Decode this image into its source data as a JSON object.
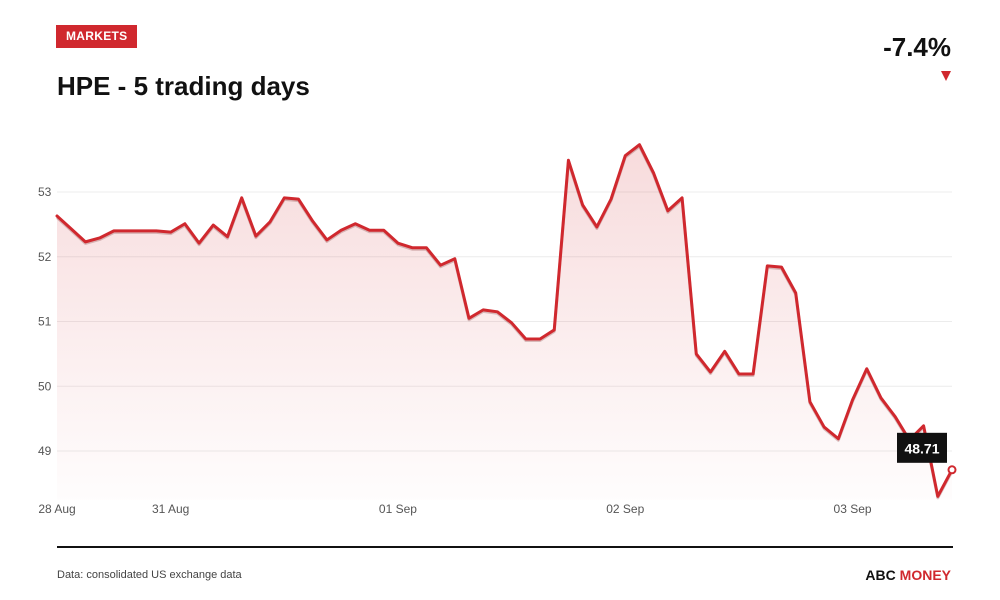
{
  "colors": {
    "accent": "#d0282e",
    "ink": "#111111",
    "muted": "#555555",
    "label_box": "#111111"
  },
  "header": {
    "badge": "MARKETS",
    "change": "-7.4%",
    "change_icon": "triangle-down-icon"
  },
  "chart_data": {
    "type": "area",
    "title": "HPE - 5 trading days",
    "y_ticks": [
      49,
      50,
      51,
      52,
      53
    ],
    "ylim": [
      48.25,
      54
    ],
    "grid": true,
    "days": [
      {
        "date": "28 Aug",
        "prices": [
          52.63,
          52.43,
          52.23,
          52.29,
          52.4,
          52.4,
          52.4,
          52.4
        ]
      },
      {
        "date": "31 Aug",
        "prices": [
          52.38,
          52.51,
          52.21,
          52.49,
          52.31,
          52.91,
          52.32,
          52.54,
          52.91,
          52.89,
          52.55,
          52.26,
          52.41,
          52.51,
          52.41,
          52.41
        ]
      },
      {
        "date": "01 Sep",
        "prices": [
          52.21,
          52.14,
          52.14,
          51.87,
          51.97,
          51.05,
          51.18,
          51.15,
          50.98,
          50.73,
          50.73,
          50.87,
          53.49,
          52.8,
          52.46,
          52.89
        ]
      },
      {
        "date": "02 Sep",
        "prices": [
          53.56,
          53.73,
          53.29,
          52.71,
          52.91,
          50.5,
          50.22,
          50.54,
          50.19,
          50.19,
          51.86,
          51.84,
          51.44,
          49.76,
          49.37,
          49.19
        ]
      },
      {
        "date": "03 Sep",
        "prices": [
          49.79,
          50.27,
          49.82,
          49.53,
          49.17,
          49.39,
          48.3,
          48.71
        ]
      }
    ],
    "last_price_label": "48.71"
  },
  "footer": {
    "source": "Data: consolidated US exchange data",
    "brand_first": "ABC",
    "brand_second": "MONEY"
  }
}
